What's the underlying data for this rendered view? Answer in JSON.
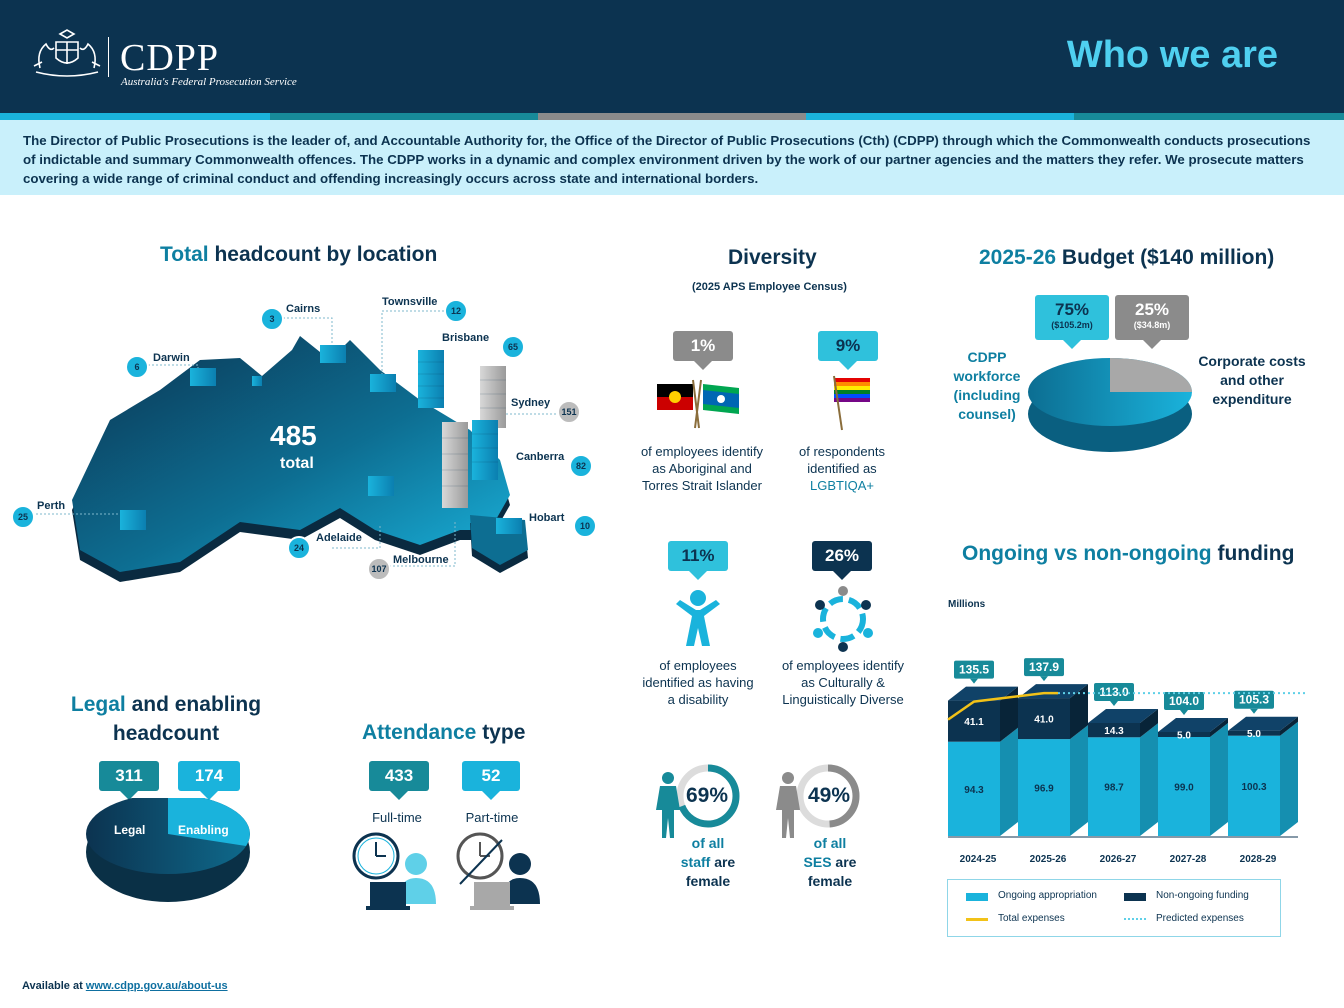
{
  "header": {
    "logo_text": "CDPP",
    "logo_subtitle": "Australia's Federal Prosecution Service",
    "title": "Who we are"
  },
  "intro": "The Director of Public Prosecutions is the leader of, and Accountable Authority for, the Office of the Director of Public Prosecutions (Cth) (CDPP) through which the Commonwealth conducts prosecutions of indictable and summary Commonwealth offences. The CDPP works in a dynamic and complex environment driven by the work of our partner agencies and the matters they refer. We prosecute matters covering a wide range of criminal conduct and offending increasingly occurs across state and international borders.",
  "location": {
    "title_accent": "Total",
    "title_rest": " headcount by location",
    "total_value": "485",
    "total_label": "total",
    "cities": [
      {
        "name": "Cairns",
        "count": "3"
      },
      {
        "name": "Townsville",
        "count": "12"
      },
      {
        "name": "Darwin",
        "count": "6"
      },
      {
        "name": "Brisbane",
        "count": "65"
      },
      {
        "name": "Sydney",
        "count": "151"
      },
      {
        "name": "Canberra",
        "count": "82"
      },
      {
        "name": "Perth",
        "count": "25"
      },
      {
        "name": "Hobart",
        "count": "10"
      },
      {
        "name": "Adelaide",
        "count": "24"
      },
      {
        "name": "Melbourne",
        "count": "107"
      }
    ]
  },
  "diversity": {
    "title": "Diversity",
    "subtitle": "(2025 APS Employee Census)",
    "items": [
      {
        "value": "1%",
        "caption": "of employees identify as Aboriginal and Torres Strait Islander"
      },
      {
        "value": "9%",
        "caption": "of respondents identified as",
        "caption_accent": "LGBTIQA+"
      },
      {
        "value": "11%",
        "caption": "of employees identified as having a disability"
      },
      {
        "value": "26%",
        "caption": "of employees identify as Culturally & Linguistically Diverse"
      }
    ],
    "female_staff": {
      "value": "69%",
      "fraction": 0.69,
      "line1": "of all",
      "line2a": "staff",
      "line2b": " are",
      "line3": "female"
    },
    "female_ses": {
      "value": "49%",
      "fraction": 0.49,
      "line1": "of all",
      "line2a": "SES",
      "line2b": " are",
      "line3": "female"
    }
  },
  "budget": {
    "title_accent": "2025-26",
    "title_rest": " Budget ($140 million)",
    "workforce": {
      "pct": "75%",
      "amount": "($105.2m)",
      "label": "CDPP workforce (including counsel)"
    },
    "corporate": {
      "pct": "25%",
      "amount": "($34.8m)",
      "label": "Corporate costs and other expenditure"
    }
  },
  "headcount": {
    "title_accent": "Legal",
    "title_rest": " and enabling headcount",
    "legal": {
      "value": "311",
      "label": "Legal"
    },
    "enabling": {
      "value": "174",
      "label": "Enabling"
    }
  },
  "attendance": {
    "title_accent": "Attendance",
    "title_rest": " type",
    "full_time": {
      "value": "433",
      "label": "Full-time"
    },
    "part_time": {
      "value": "52",
      "label": "Part-time"
    }
  },
  "funding": {
    "title_accent": "Ongoing vs non-ongoing",
    "title_rest": " funding",
    "unit": "Millions",
    "legend": {
      "ongoing": "Ongoing appropriation",
      "non_ongoing": "Non-ongoing funding",
      "total": "Total expenses",
      "predicted": "Predicted expenses"
    }
  },
  "chart_data": {
    "type": "bar",
    "stacked": true,
    "categories": [
      "2024-25",
      "2025-26",
      "2026-27",
      "2027-28",
      "2028-29"
    ],
    "series": [
      {
        "name": "Ongoing appropriation",
        "values": [
          94.3,
          96.9,
          98.7,
          99.0,
          100.3
        ]
      },
      {
        "name": "Non-ongoing funding",
        "values": [
          41.1,
          41.0,
          14.3,
          5.0,
          5.0
        ]
      }
    ],
    "totals": [
      "135.5",
      "137.9",
      "113.0",
      "104.0",
      "105.3"
    ],
    "ylabel": "Millions",
    "legend": "bottom",
    "colors": {
      "ongoing": "#1ab3dc",
      "non_ongoing": "#0c3350",
      "total": "#f2c218",
      "predicted": "#5fd0e8"
    }
  },
  "footer": {
    "prefix": "Available at ",
    "link": "www.cdpp.gov.au/about-us"
  },
  "colors": {
    "navy": "#0c3350",
    "cyan": "#1ab3dc",
    "teal": "#178a99",
    "grey": "#8b8b8b",
    "light_bg": "#c9f0fb",
    "title_cyan": "#4fd0f0"
  }
}
